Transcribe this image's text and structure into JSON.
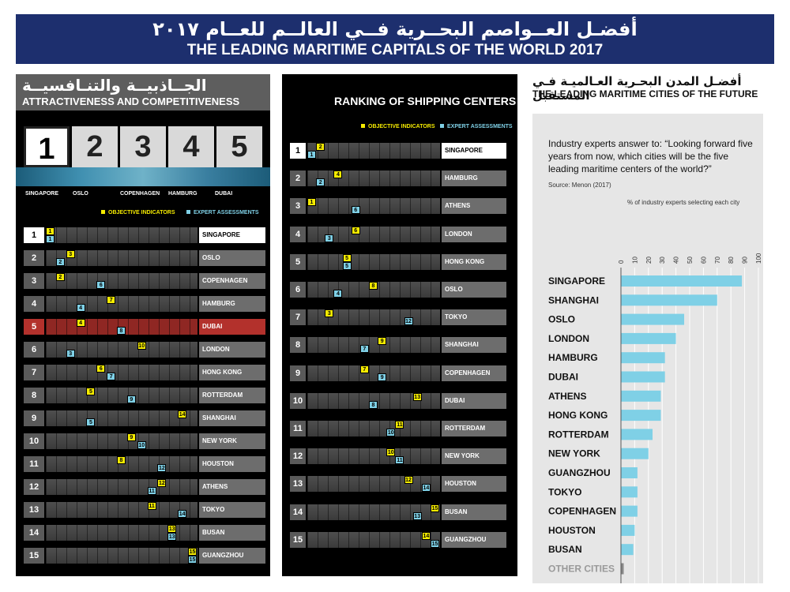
{
  "header": {
    "title_ar": "أفضـل العــواصم البحــرية فــي العالــم للعــام ٢٠١٧",
    "title_en": "THE LEADING MARITIME CAPITALS OF THE WORLD 2017"
  },
  "left": {
    "title_ar": "الجــاذبيــة والتنـافسيــة",
    "title_en": "ATTRACTIVENESS AND COMPETITIVENESS",
    "top5": [
      "1",
      "2",
      "3",
      "4",
      "5"
    ],
    "top5_names": [
      "SINGAPORE",
      "OSLO",
      "COPENHAGEN",
      "HAMBURG",
      "DUBAI"
    ],
    "legend_obj": "OBJECTIVE INDICATORS",
    "legend_exp": "EXPERT ASSESSMENTS"
  },
  "mid": {
    "title": "RANKING OF SHIPPING CENTERS",
    "legend_obj": "OBJECTIVE INDICATORS",
    "legend_exp": "EXPERT ASSESSMENTS"
  },
  "right": {
    "title_ar": "أفضـل المدن البحـرية العـالميـة فـي المستقبل",
    "title_en": "THE LEADING MARITIME CITIES OF THE FUTURE",
    "question": "Industry experts answer to: “Looking forward five years from now, which cities will be the five leading maritime centers of the world?”",
    "source": "Source: Menon (2017)",
    "pct_label": "% of industry experts selecting each city"
  },
  "colors": {
    "objective": "#f5eb00",
    "expert": "#7fd0e6",
    "bar": "#7fd0e6",
    "highlight": "#b3312c",
    "navy": "#1d2f6e"
  },
  "chart_data": [
    {
      "type": "table",
      "title": "ATTRACTIVENESS AND COMPETITIVENESS",
      "columns": [
        "rank",
        "city",
        "objective_indicators",
        "expert_assessments"
      ],
      "rows": [
        [
          1,
          "SINGAPORE",
          1,
          1
        ],
        [
          2,
          "OSLO",
          3,
          2
        ],
        [
          3,
          "COPENHAGEN",
          2,
          6
        ],
        [
          4,
          "HAMBURG",
          7,
          4
        ],
        [
          5,
          "DUBAI",
          4,
          8
        ],
        [
          6,
          "LONDON",
          10,
          3
        ],
        [
          7,
          "HONG KONG",
          6,
          7
        ],
        [
          8,
          "ROTTERDAM",
          5,
          9
        ],
        [
          9,
          "SHANGHAI",
          14,
          5
        ],
        [
          10,
          "NEW YORK",
          9,
          10
        ],
        [
          11,
          "HOUSTON",
          8,
          12
        ],
        [
          12,
          "ATHENS",
          12,
          11
        ],
        [
          13,
          "TOKYO",
          11,
          14
        ],
        [
          14,
          "BUSAN",
          13,
          13
        ],
        [
          15,
          "GUANGZHOU",
          15,
          15
        ]
      ]
    },
    {
      "type": "table",
      "title": "RANKING OF SHIPPING CENTERS",
      "columns": [
        "rank",
        "city",
        "objective_indicators",
        "expert_assessments"
      ],
      "rows": [
        [
          1,
          "SINGAPORE",
          2,
          1
        ],
        [
          2,
          "HAMBURG",
          4,
          2
        ],
        [
          3,
          "ATHENS",
          1,
          6
        ],
        [
          4,
          "LONDON",
          6,
          3
        ],
        [
          5,
          "HONG KONG",
          5,
          5
        ],
        [
          6,
          "OSLO",
          8,
          4
        ],
        [
          7,
          "TOKYO",
          3,
          12
        ],
        [
          8,
          "SHANGHAI",
          9,
          7
        ],
        [
          9,
          "COPENHAGEN",
          7,
          9
        ],
        [
          10,
          "DUBAI",
          13,
          8
        ],
        [
          11,
          "ROTTERDAM",
          11,
          10
        ],
        [
          12,
          "NEW YORK",
          10,
          11
        ],
        [
          13,
          "HOUSTON",
          12,
          14
        ],
        [
          14,
          "BUSAN",
          15,
          13
        ],
        [
          15,
          "GUANGZHOU",
          14,
          15
        ]
      ]
    },
    {
      "type": "bar",
      "title": "THE LEADING MARITIME CITIES OF THE FUTURE",
      "xlabel": "% of industry experts selecting each city",
      "xlim": [
        0,
        100
      ],
      "xticks": [
        0,
        10,
        20,
        30,
        40,
        50,
        60,
        70,
        80,
        90,
        100
      ],
      "categories": [
        "SINGAPORE",
        "SHANGHAI",
        "OSLO",
        "LONDON",
        "HAMBURG",
        "DUBAI",
        "ATHENS",
        "HONG KONG",
        "ROTTERDAM",
        "NEW YORK",
        "GUANGZHOU",
        "TOKYO",
        "COPENHAGEN",
        "HOUSTON",
        "BUSAN",
        "OTHER CITIES"
      ],
      "values": [
        88,
        70,
        46,
        40,
        32,
        32,
        29,
        29,
        23,
        20,
        12,
        12,
        12,
        10,
        9,
        2
      ]
    }
  ]
}
